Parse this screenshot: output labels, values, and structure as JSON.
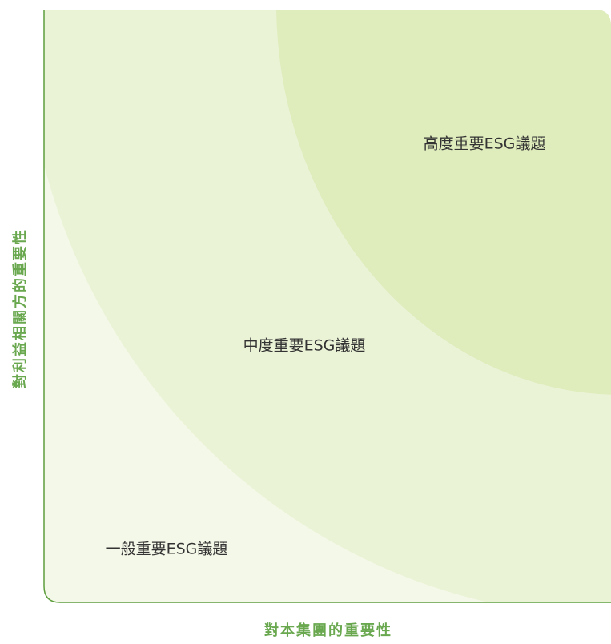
{
  "zones": [
    {
      "label": "高度重要ESG議題"
    },
    {
      "label": "中度重要ESG議題"
    },
    {
      "label": "一般重要ESG議題"
    }
  ],
  "x_axis_label": "對本集團的重要性",
  "y_axis_label": "對利益相關方的重要性"
}
